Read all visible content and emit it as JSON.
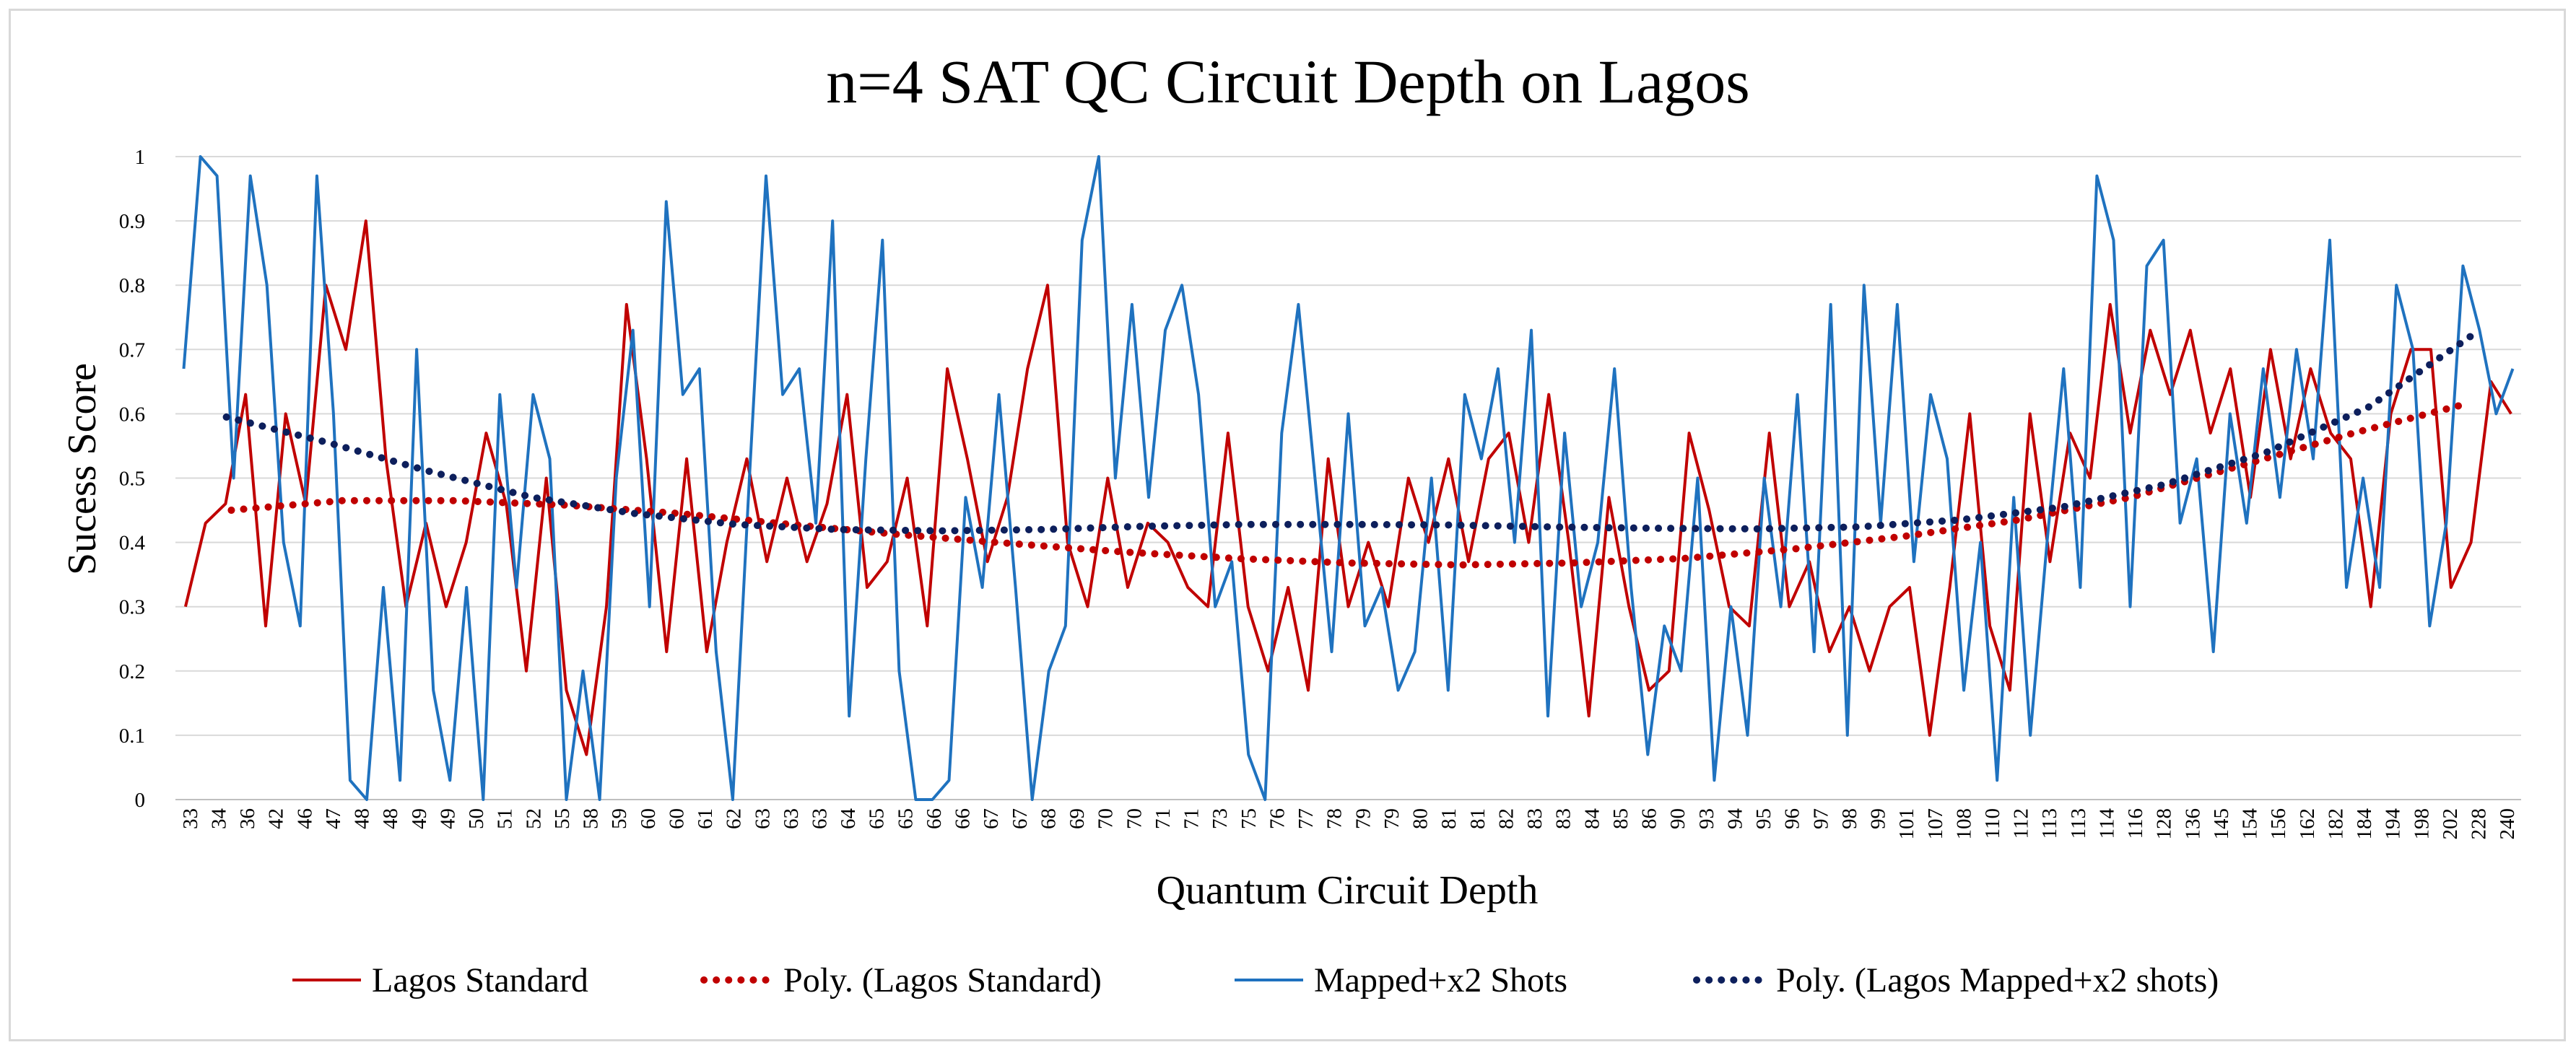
{
  "chart_data": {
    "type": "line",
    "title": "n=4 SAT QC Circuit Depth on Lagos",
    "xlabel": "Quantum Circuit Depth",
    "ylabel": "Sucess Score",
    "ylim": [
      0,
      1
    ],
    "yticks": [
      "0",
      "0.1",
      "0.2",
      "0.3",
      "0.4",
      "0.5",
      "0.6",
      "0.7",
      "0.8",
      "0.9",
      "1"
    ],
    "xtick_labels": [
      "33",
      "34",
      "36",
      "42",
      "46",
      "47",
      "48",
      "48",
      "49",
      "49",
      "50",
      "51",
      "52",
      "55",
      "58",
      "59",
      "60",
      "60",
      "61",
      "62",
      "63",
      "63",
      "63",
      "64",
      "65",
      "65",
      "66",
      "66",
      "67",
      "67",
      "68",
      "69",
      "70",
      "70",
      "71",
      "71",
      "73",
      "75",
      "76",
      "77",
      "78",
      "79",
      "79",
      "80",
      "81",
      "81",
      "82",
      "83",
      "83",
      "84",
      "85",
      "86",
      "90",
      "93",
      "94",
      "95",
      "96",
      "97",
      "98",
      "99",
      "101",
      "107",
      "108",
      "110",
      "112",
      "113",
      "113",
      "114",
      "116",
      "128",
      "136",
      "145",
      "154",
      "156",
      "162",
      "182",
      "184",
      "194",
      "198",
      "202",
      "228",
      "240"
    ],
    "grid": true,
    "legend_position": "bottom",
    "series": [
      {
        "name": "Lagos Standard",
        "color": "#c00000",
        "values": [
          0.3,
          0.43,
          0.46,
          0.63,
          0.27,
          0.6,
          0.46,
          0.8,
          0.7,
          0.9,
          0.53,
          0.3,
          0.43,
          0.3,
          0.4,
          0.57,
          0.46,
          0.2,
          0.5,
          0.17,
          0.07,
          0.3,
          0.77,
          0.53,
          0.23,
          0.53,
          0.23,
          0.4,
          0.53,
          0.37,
          0.5,
          0.37,
          0.46,
          0.63,
          0.33,
          0.37,
          0.5,
          0.27,
          0.67,
          0.53,
          0.37,
          0.47,
          0.67,
          0.8,
          0.4,
          0.3,
          0.5,
          0.33,
          0.43,
          0.4,
          0.33,
          0.3,
          0.57,
          0.3,
          0.2,
          0.33,
          0.17,
          0.53,
          0.3,
          0.4,
          0.3,
          0.5,
          0.4,
          0.53,
          0.37,
          0.53,
          0.57,
          0.4,
          0.63,
          0.4,
          0.13,
          0.47,
          0.3,
          0.17,
          0.2,
          0.57,
          0.45,
          0.3,
          0.27,
          0.57,
          0.3,
          0.37,
          0.23,
          0.3,
          0.2,
          0.3,
          0.33,
          0.1,
          0.33,
          0.6,
          0.27,
          0.17,
          0.6,
          0.37,
          0.57,
          0.5,
          0.77,
          0.57,
          0.73,
          0.63,
          0.73,
          0.57,
          0.67,
          0.47,
          0.7,
          0.53,
          0.67,
          0.57,
          0.53,
          0.3,
          0.6,
          0.7,
          0.7,
          0.33,
          0.4,
          0.65,
          0.6
        ],
        "trendline": {
          "name": "Poly. (Lagos Standard)",
          "color": "#c00000",
          "values": [
            0.45,
            0.465,
            0.465,
            0.458,
            0.445,
            0.428,
            0.412,
            0.398,
            0.385,
            0.375,
            0.368,
            0.365,
            0.368,
            0.375,
            0.39,
            0.41,
            0.435,
            0.47,
            0.52,
            0.57,
            0.615
          ]
        }
      },
      {
        "name": "Mapped+x2 Shots",
        "color": "#1f72bf",
        "values": [
          0.67,
          1.0,
          0.97,
          0.5,
          0.97,
          0.8,
          0.4,
          0.27,
          0.97,
          0.6,
          0.03,
          0.0,
          0.33,
          0.03,
          0.7,
          0.17,
          0.03,
          0.33,
          0.0,
          0.63,
          0.33,
          0.63,
          0.53,
          0.0,
          0.2,
          0.0,
          0.5,
          0.73,
          0.3,
          0.93,
          0.63,
          0.67,
          0.23,
          0.0,
          0.5,
          0.97,
          0.63,
          0.67,
          0.43,
          0.9,
          0.13,
          0.53,
          0.87,
          0.2,
          0.0,
          0.0,
          0.03,
          0.47,
          0.33,
          0.63,
          0.33,
          0.0,
          0.2,
          0.27,
          0.87,
          1.0,
          0.5,
          0.77,
          0.47,
          0.73,
          0.8,
          0.63,
          0.3,
          0.37,
          0.07,
          0.0,
          0.57,
          0.77,
          0.5,
          0.23,
          0.6,
          0.27,
          0.33,
          0.17,
          0.23,
          0.5,
          0.17,
          0.63,
          0.53,
          0.67,
          0.4,
          0.73,
          0.13,
          0.57,
          0.3,
          0.4,
          0.67,
          0.33,
          0.07,
          0.27,
          0.2,
          0.5,
          0.03,
          0.3,
          0.1,
          0.5,
          0.3,
          0.63,
          0.23,
          0.77,
          0.1,
          0.8,
          0.43,
          0.77,
          0.37,
          0.63,
          0.53,
          0.17,
          0.4,
          0.03,
          0.47,
          0.1,
          0.4,
          0.67,
          0.33,
          0.97,
          0.87,
          0.3,
          0.83,
          0.87,
          0.43,
          0.53,
          0.23,
          0.6,
          0.43,
          0.67,
          0.47,
          0.7,
          0.53,
          0.87,
          0.33,
          0.5,
          0.33,
          0.8,
          0.7,
          0.27,
          0.43,
          0.83,
          0.73,
          0.6,
          0.67
        ],
        "trendline": {
          "name": "Poly. (Lagos Mapped+x2 shots)",
          "color": "#0d1f5c",
          "values": [
            0.595,
            0.555,
            0.51,
            0.47,
            0.445,
            0.428,
            0.42,
            0.418,
            0.42,
            0.425,
            0.428,
            0.428,
            0.427,
            0.424,
            0.422,
            0.421,
            0.424,
            0.435,
            0.455,
            0.49,
            0.54,
            0.61,
            0.72
          ]
        }
      }
    ]
  }
}
